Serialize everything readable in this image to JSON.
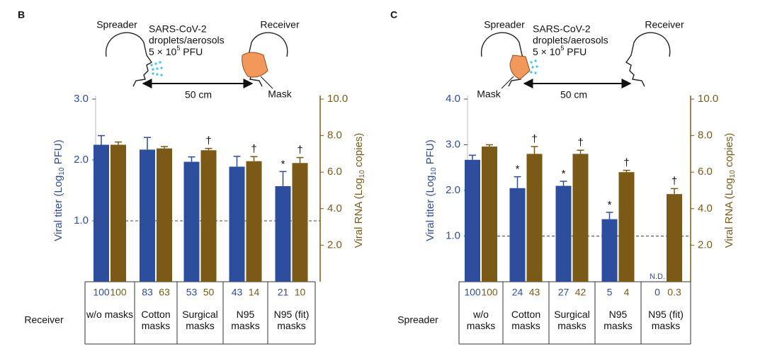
{
  "chart_data": [
    {
      "type": "bar",
      "panel": "B",
      "ylabel": [
        "Viral titer (Log",
        "10",
        " PFU)"
      ],
      "y2label": [
        "Viral RNA (Log",
        "10",
        " copies)"
      ],
      "categories": [
        "w/o masks",
        "Cotton masks",
        "Surgical masks",
        "N95 masks",
        "N95 (fit) masks"
      ],
      "series": [
        {
          "color": "#2d4e9c",
          "values": [
            2.25,
            2.17,
            1.97,
            1.89,
            1.57
          ],
          "errors": [
            0.15,
            0.2,
            0.08,
            0.17,
            0.24
          ]
        },
        {
          "color": "#7b5a17",
          "axis": "y2",
          "values": [
            7.5,
            7.3,
            7.2,
            6.6,
            6.5
          ],
          "errors": [
            0.15,
            0.1,
            0.1,
            0.25,
            0.3
          ]
        }
      ],
      "annotations": [
        {
          "series": 0,
          "index": 4,
          "text": "*"
        },
        {
          "series": 1,
          "index": 2,
          "text": "†"
        },
        {
          "series": 1,
          "index": 3,
          "text": "†"
        },
        {
          "series": 1,
          "index": 4,
          "text": "†"
        }
      ],
      "ylim": [
        0,
        3
      ],
      "yticks": [
        {
          "value": 1,
          "label": "1.0"
        },
        {
          "value": 2,
          "label": "2.0"
        },
        {
          "value": 3,
          "label": "3.0"
        }
      ],
      "y2lim": [
        0,
        10
      ],
      "y2ticks": [
        {
          "value": 2,
          "label": "2.0"
        },
        {
          "value": 4,
          "label": "4.0"
        },
        {
          "value": 6,
          "label": "6.0"
        },
        {
          "value": 8,
          "label": "8.0"
        },
        {
          "value": 10,
          "label": "10.0"
        }
      ],
      "refline": 1,
      "table": {
        "row_label": "Receiver",
        "rows": [
          [
            100,
            83,
            53,
            43,
            21
          ],
          [
            100,
            63,
            50,
            14,
            10
          ]
        ]
      }
    },
    {
      "type": "bar",
      "panel": "C",
      "ylabel": [
        "Viral titer (Log",
        "10",
        " PFU)"
      ],
      "y2label": [
        "Viral RNA (Log",
        "10",
        " copies)"
      ],
      "categories": [
        "w/o masks",
        "Cotton masks",
        "Surgical masks",
        "N95 masks",
        "N95 (fit) masks"
      ],
      "series": [
        {
          "color": "#2d4e9c",
          "values": [
            2.67,
            2.05,
            2.1,
            1.37,
            null
          ],
          "errors": [
            0.1,
            0.25,
            0.1,
            0.15,
            null
          ]
        },
        {
          "color": "#7b5a17",
          "axis": "y2",
          "values": [
            7.4,
            7.0,
            7.0,
            6.0,
            4.8
          ],
          "errors": [
            0.1,
            0.4,
            0.2,
            0.1,
            0.3
          ]
        }
      ],
      "annotations": [
        {
          "series": 0,
          "index": 1,
          "text": "*"
        },
        {
          "series": 0,
          "index": 2,
          "text": "*"
        },
        {
          "series": 0,
          "index": 3,
          "text": "*"
        },
        {
          "series": 0,
          "index": 4,
          "text": "N.D."
        },
        {
          "series": 1,
          "index": 1,
          "text": "†"
        },
        {
          "series": 1,
          "index": 2,
          "text": "†"
        },
        {
          "series": 1,
          "index": 3,
          "text": "†"
        },
        {
          "series": 1,
          "index": 4,
          "text": "†"
        }
      ],
      "ylim": [
        0,
        4
      ],
      "yticks": [
        {
          "value": 1,
          "label": "1.0"
        },
        {
          "value": 2,
          "label": "2.0"
        },
        {
          "value": 3,
          "label": "3.0"
        },
        {
          "value": 4,
          "label": "4.0"
        }
      ],
      "y2lim": [
        0,
        10
      ],
      "y2ticks": [
        {
          "value": 2,
          "label": "2.0"
        },
        {
          "value": 4,
          "label": "4.0"
        },
        {
          "value": 6,
          "label": "6.0"
        },
        {
          "value": 8,
          "label": "8.0"
        },
        {
          "value": 10,
          "label": "10.0"
        }
      ],
      "refline": 1,
      "table": {
        "row_label": "Spreader",
        "rows": [
          [
            100,
            24,
            27,
            5,
            0
          ],
          [
            100,
            43,
            42,
            4,
            0.3
          ]
        ]
      }
    }
  ],
  "diagrams": [
    {
      "spreader": "Spreader",
      "agent": [
        "SARS-CoV-2",
        "droplets/aerosols"
      ],
      "dose": [
        "5 × 10",
        "5",
        " PFU"
      ],
      "receiver": "Receiver",
      "distance": "50 cm",
      "mask": "Mask"
    },
    {
      "spreader": "Spreader",
      "agent": [
        "SARS-CoV-2",
        "droplets/aerosols"
      ],
      "dose": [
        "5 × 10",
        "5",
        " PFU"
      ],
      "receiver": "Receiver",
      "distance": "50 cm",
      "mask": "Mask"
    }
  ]
}
